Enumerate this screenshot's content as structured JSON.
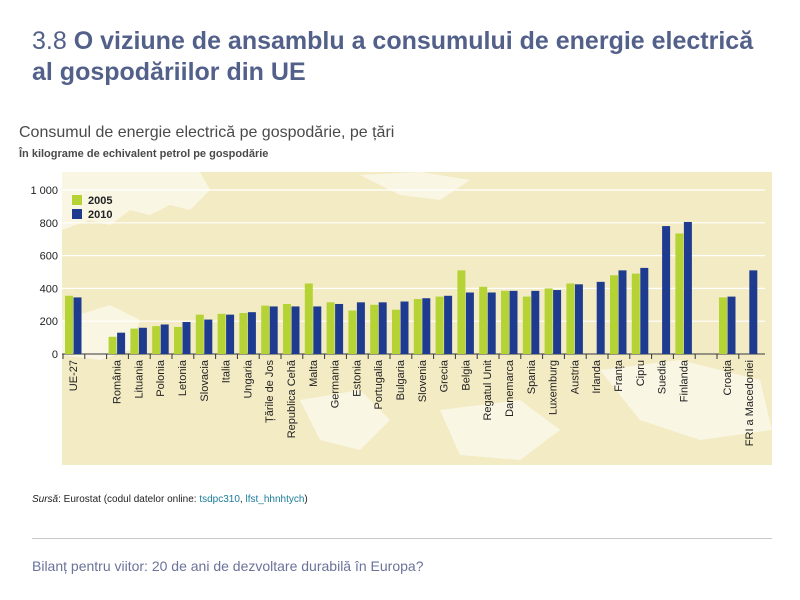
{
  "title": {
    "number": "3.8",
    "text": "O viziune de ansamblu a consumului de energie electrică al gospodăriilor din UE"
  },
  "footer": "Bilanț pentru viitor: 20 de ani de dezvoltare durabilă în Europa?",
  "source": {
    "label": "Sursă",
    "text": ": Eurostat (codul datelor online: ",
    "code1": "tsdpc310",
    "sep": ", ",
    "code2": "lfst_hhnhtych",
    "end": ")"
  },
  "colors": {
    "series_2005": "#b5d334",
    "series_2010": "#1f3b8f",
    "map_land": "#f3ebc4",
    "title": "#52608a"
  },
  "chart_data": {
    "type": "bar",
    "title": "Consumul de energie electrică pe gospodărie, pe țări",
    "subtitle": "În kilograme de echivalent petrol pe gospodărie",
    "xlabel": "",
    "ylabel": "",
    "ylim": [
      0,
      1000
    ],
    "yticks": [
      "0",
      "200",
      "400",
      "600",
      "800",
      "1 000"
    ],
    "ytick_values": [
      0,
      200,
      400,
      600,
      800,
      1000
    ],
    "grid": true,
    "legend_position": "top-left",
    "categories": [
      "UE-27",
      "",
      "România",
      "Lituania",
      "Polonia",
      "Letonia",
      "Slovacia",
      "Italia",
      "Ungaria",
      "Țările de Jos",
      "Republica Cehă",
      "Malta",
      "Germania",
      "Estonia",
      "Portugalia",
      "Bulgaria",
      "Slovenia",
      "Grecia",
      "Belgia",
      "Regatul Unit",
      "Danemarca",
      "Spania",
      "Luxemburg",
      "Austria",
      "Irlanda",
      "Franța",
      "Cipru",
      "Suedia",
      "Finlanda",
      "",
      "Croația",
      "FRI a Macedoniei"
    ],
    "series": [
      {
        "name": "2005",
        "values": [
          355,
          null,
          105,
          155,
          170,
          165,
          240,
          245,
          250,
          295,
          305,
          430,
          315,
          265,
          300,
          270,
          335,
          350,
          510,
          410,
          385,
          350,
          400,
          430,
          null,
          480,
          490,
          null,
          735,
          null,
          345,
          null
        ]
      },
      {
        "name": "2010",
        "values": [
          345,
          null,
          130,
          160,
          180,
          195,
          210,
          240,
          255,
          290,
          290,
          290,
          305,
          315,
          315,
          320,
          340,
          355,
          375,
          375,
          385,
          385,
          390,
          425,
          440,
          510,
          525,
          780,
          805,
          null,
          350,
          510
        ]
      }
    ]
  }
}
